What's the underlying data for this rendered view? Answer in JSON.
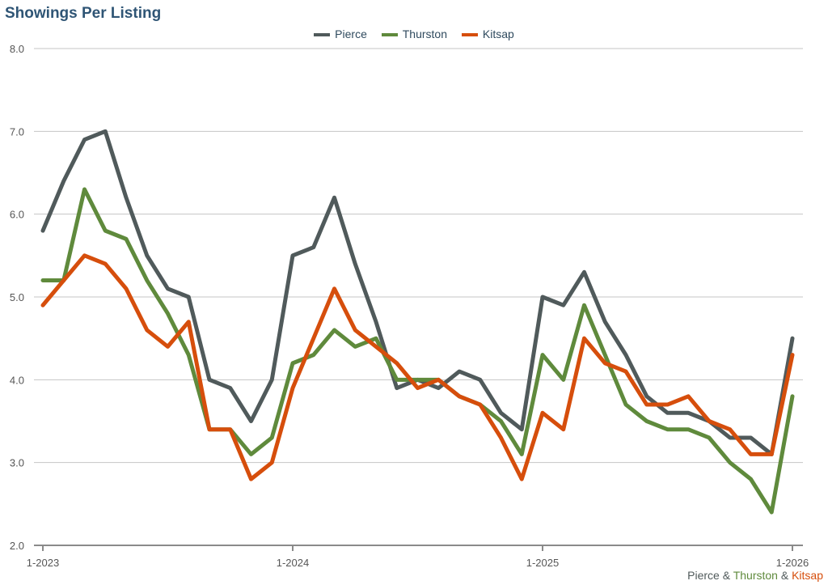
{
  "chart_data": {
    "type": "line",
    "title": "Showings Per Listing",
    "xlabel": "",
    "ylabel": "",
    "ylim": [
      2.0,
      8.0
    ],
    "yticks": [
      "2.0",
      "3.0",
      "4.0",
      "5.0",
      "6.0",
      "7.0",
      "8.0"
    ],
    "x_tick_labels": [
      {
        "index": 0,
        "label": "1-2023"
      },
      {
        "index": 12,
        "label": "1-2024"
      },
      {
        "index": 24,
        "label": "1-2025"
      },
      {
        "index": 36,
        "label": "1-2026"
      }
    ],
    "legend_position": "top-center",
    "grid": true,
    "series": [
      {
        "name": "Pierce",
        "color": "#505a5b",
        "values": [
          5.8,
          6.4,
          6.9,
          7.0,
          6.2,
          5.5,
          5.1,
          5.0,
          4.0,
          3.9,
          3.5,
          4.0,
          5.5,
          5.6,
          6.2,
          5.4,
          4.7,
          3.9,
          4.0,
          3.9,
          4.1,
          4.0,
          3.6,
          3.4,
          5.0,
          4.9,
          5.3,
          4.7,
          4.3,
          3.8,
          3.6,
          3.6,
          3.5,
          3.3,
          3.3,
          3.1,
          4.5
        ]
      },
      {
        "name": "Thurston",
        "color": "#5f8a3c",
        "values": [
          5.2,
          5.2,
          6.3,
          5.8,
          5.7,
          5.2,
          4.8,
          4.3,
          3.4,
          3.4,
          3.1,
          3.3,
          4.2,
          4.3,
          4.6,
          4.4,
          4.5,
          4.0,
          4.0,
          4.0,
          3.8,
          3.7,
          3.5,
          3.1,
          4.3,
          4.0,
          4.9,
          4.3,
          3.7,
          3.5,
          3.4,
          3.4,
          3.3,
          3.0,
          2.8,
          2.4,
          3.8
        ]
      },
      {
        "name": "Kitsap",
        "color": "#d64e0c",
        "values": [
          4.9,
          5.2,
          5.5,
          5.4,
          5.1,
          4.6,
          4.4,
          4.7,
          3.4,
          3.4,
          2.8,
          3.0,
          3.9,
          4.5,
          5.1,
          4.6,
          4.4,
          4.2,
          3.9,
          4.0,
          3.8,
          3.7,
          3.3,
          2.8,
          3.6,
          3.4,
          4.5,
          4.2,
          4.1,
          3.7,
          3.7,
          3.8,
          3.5,
          3.4,
          3.1,
          3.1,
          4.3
        ]
      }
    ]
  },
  "footer": {
    "parts": [
      {
        "text": "Pierce",
        "color": "#505a5b"
      },
      {
        "text": " & ",
        "color": "#505a5b"
      },
      {
        "text": "Thurston",
        "color": "#5f8a3c"
      },
      {
        "text": " & ",
        "color": "#505a5b"
      },
      {
        "text": "Kitsap",
        "color": "#d64e0c"
      }
    ]
  }
}
